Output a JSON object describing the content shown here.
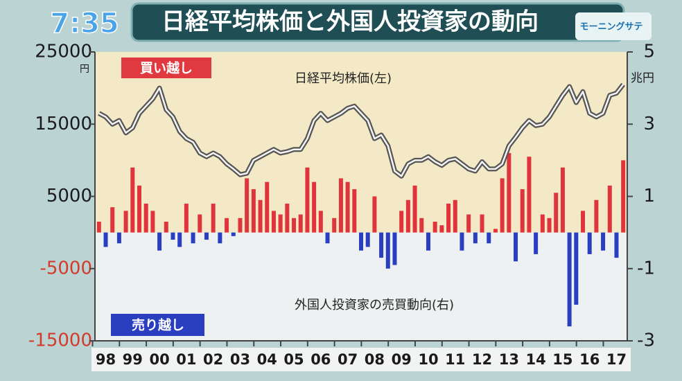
{
  "clock": "7:35",
  "logo": "モーニングサテ",
  "chart_data": {
    "type": "line-bar",
    "title": "日経平均株価と外国人投資家の動向",
    "y_unit": "円",
    "y2_unit": "兆円",
    "buy_label": "買い越し",
    "sell_label": "売り越し",
    "xlim": [
      1997.6,
      2017.4
    ],
    "xticks": [
      {
        "value": 1998,
        "label": "98"
      },
      {
        "value": 1999,
        "label": "99"
      },
      {
        "value": 2000,
        "label": "00"
      },
      {
        "value": 2001,
        "label": "01"
      },
      {
        "value": 2002,
        "label": "02"
      },
      {
        "value": 2003,
        "label": "03"
      },
      {
        "value": 2004,
        "label": "04"
      },
      {
        "value": 2005,
        "label": "05"
      },
      {
        "value": 2006,
        "label": "06"
      },
      {
        "value": 2007,
        "label": "07"
      },
      {
        "value": 2008,
        "label": "08"
      },
      {
        "value": 2009,
        "label": "09"
      },
      {
        "value": 2010,
        "label": "10"
      },
      {
        "value": 2011,
        "label": "11"
      },
      {
        "value": 2012,
        "label": "12"
      },
      {
        "value": 2013,
        "label": "13"
      },
      {
        "value": 2014,
        "label": "14"
      },
      {
        "value": 2015,
        "label": "15"
      },
      {
        "value": 2016,
        "label": "16"
      },
      {
        "value": 2017,
        "label": "17"
      }
    ],
    "ylim": [
      -15000,
      25000
    ],
    "yticks": [
      25000,
      15000,
      5000,
      -5000,
      -15000
    ],
    "y2lim": [
      -3,
      5
    ],
    "y2ticks": [
      5,
      3,
      1,
      -1,
      -3
    ],
    "x": [
      1997.75,
      1998,
      1998.25,
      1998.5,
      1998.75,
      1999,
      1999.25,
      1999.5,
      1999.75,
      2000,
      2000.25,
      2000.5,
      2000.75,
      2001,
      2001.25,
      2001.5,
      2001.75,
      2002,
      2002.25,
      2002.5,
      2002.75,
      2003,
      2003.25,
      2003.5,
      2003.75,
      2004,
      2004.25,
      2004.5,
      2004.75,
      2005,
      2005.25,
      2005.5,
      2005.75,
      2006,
      2006.25,
      2006.5,
      2006.75,
      2007,
      2007.25,
      2007.5,
      2007.75,
      2008,
      2008.25,
      2008.5,
      2008.75,
      2009,
      2009.25,
      2009.5,
      2009.75,
      2010,
      2010.25,
      2010.5,
      2010.75,
      2011,
      2011.25,
      2011.5,
      2011.75,
      2012,
      2012.25,
      2012.5,
      2012.75,
      2013,
      2013.25,
      2013.5,
      2013.75,
      2014,
      2014.25,
      2014.5,
      2014.75,
      2015,
      2015.25,
      2015.5,
      2015.75,
      2016,
      2016.25,
      2016.5,
      2016.75,
      2017,
      2017.25
    ],
    "series": [
      {
        "name": "日経平均株価(左)",
        "kind": "line",
        "color": "#555555",
        "values": [
          16500,
          16000,
          15000,
          15500,
          13800,
          14500,
          16500,
          17500,
          18500,
          20000,
          17000,
          16000,
          14000,
          13000,
          12500,
          11000,
          10500,
          11000,
          10500,
          9500,
          8800,
          8000,
          8200,
          10000,
          10500,
          11000,
          11500,
          11000,
          11200,
          11500,
          11500,
          13000,
          15500,
          16500,
          15500,
          16000,
          16500,
          17200,
          17500,
          16500,
          15500,
          13000,
          13500,
          12000,
          8500,
          7800,
          9500,
          10000,
          10000,
          10500,
          9800,
          9300,
          10000,
          10200,
          9500,
          8800,
          8500,
          9800,
          8800,
          8800,
          9500,
          12000,
          13200,
          14500,
          15500,
          14800,
          15000,
          16000,
          17500,
          19000,
          20200,
          18000,
          19500,
          16500,
          16000,
          16500,
          19000,
          19300,
          20500
        ]
      },
      {
        "name": "外国人投資家の売買動向(右)",
        "kind": "bar",
        "axis": "y2",
        "color": "#e0343c",
        "negative_color": "#2a3fc0",
        "values": [
          0.3,
          -0.4,
          0.7,
          -0.3,
          0.6,
          1.8,
          1.3,
          0.8,
          0.6,
          -0.5,
          0.3,
          -0.2,
          -0.4,
          0.8,
          -0.3,
          0.5,
          -0.2,
          0.8,
          -0.3,
          0.4,
          -0.1,
          0.4,
          1.5,
          1.2,
          0.9,
          1.4,
          0.6,
          0.5,
          0.8,
          0.4,
          0.5,
          1.8,
          1.4,
          0.6,
          -0.3,
          0.4,
          1.5,
          1.4,
          1.2,
          -0.5,
          -0.4,
          1.0,
          -0.7,
          -1.0,
          -0.9,
          0.6,
          0.9,
          1.3,
          0.4,
          -0.5,
          0.3,
          0.2,
          0.8,
          0.9,
          -0.5,
          0.5,
          -0.3,
          0.5,
          -0.3,
          0.1,
          1.5,
          2.2,
          -0.8,
          1.2,
          2.1,
          -0.6,
          0.5,
          0.4,
          1.1,
          1.8,
          -2.6,
          -2.0,
          0.6,
          -0.6,
          0.9,
          -0.5,
          1.3,
          -0.7,
          2.0
        ]
      }
    ]
  }
}
